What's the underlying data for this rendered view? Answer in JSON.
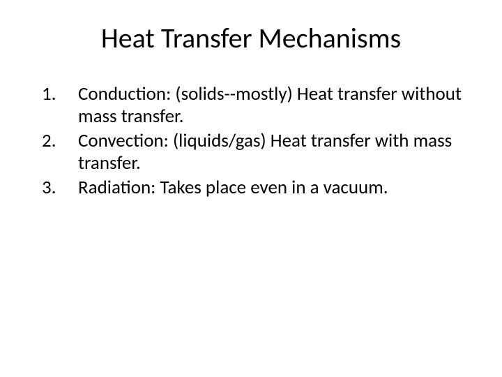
{
  "slide": {
    "title": "Heat Transfer Mechanisms",
    "items": [
      "Conduction: (solids--mostly) Heat transfer without mass transfer.",
      "Convection: (liquids/gas) Heat transfer with mass transfer.",
      "Radiation: Takes place even in a vacuum."
    ],
    "title_fontsize": 40,
    "body_fontsize": 27,
    "text_color": "#000000",
    "background_color": "#ffffff"
  }
}
